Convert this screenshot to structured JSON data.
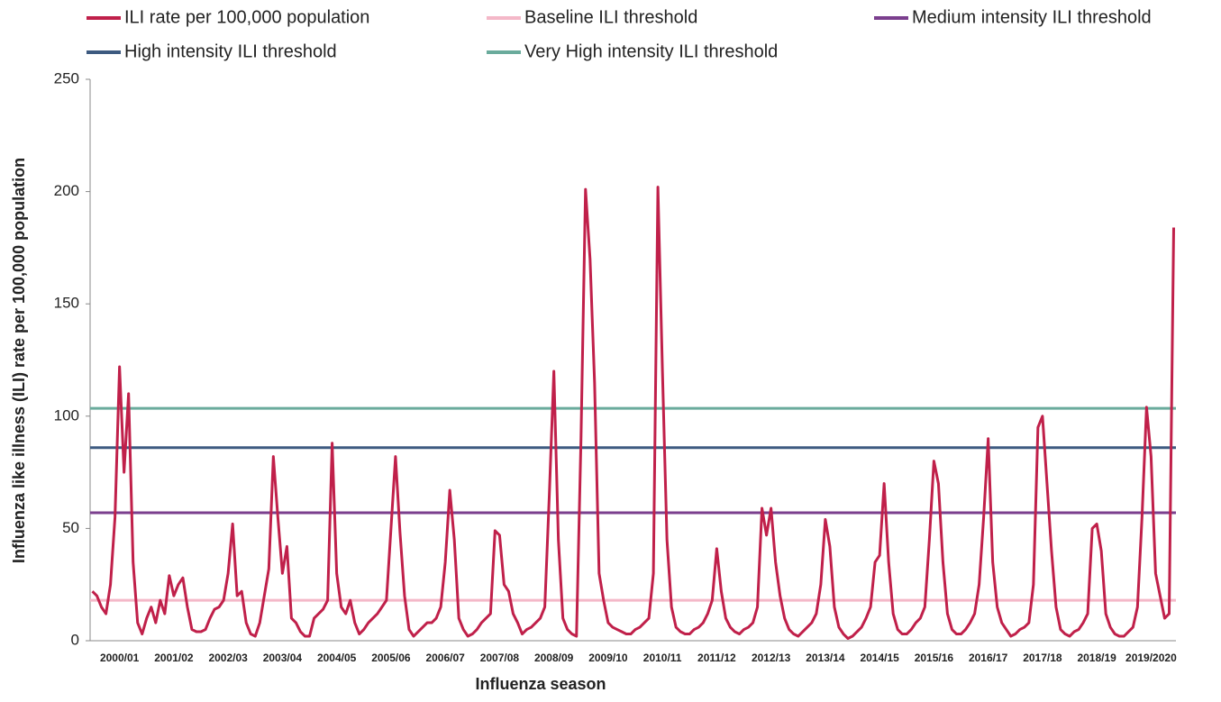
{
  "chart_data": {
    "type": "line",
    "y_label": "Influenza like illness (ILI) rate per 100,000 population",
    "x_label": "Influenza season",
    "categories": [
      null,
      null,
      null,
      null,
      null,
      null,
      "2000/01",
      null,
      null,
      null,
      null,
      null,
      null,
      null,
      null,
      null,
      null,
      null,
      "2001/02",
      null,
      null,
      null,
      null,
      null,
      null,
      null,
      null,
      null,
      null,
      null,
      "2002/03",
      null,
      null,
      null,
      null,
      null,
      null,
      null,
      null,
      null,
      null,
      null,
      "2003/04",
      null,
      null,
      null,
      null,
      null,
      null,
      null,
      null,
      null,
      null,
      null,
      "2004/05",
      null,
      null,
      null,
      null,
      null,
      null,
      null,
      null,
      null,
      null,
      null,
      "2005/06",
      null,
      null,
      null,
      null,
      null,
      null,
      null,
      null,
      null,
      null,
      null,
      "2006/07",
      null,
      null,
      null,
      null,
      null,
      null,
      null,
      null,
      null,
      null,
      null,
      "2007/08",
      null,
      null,
      null,
      null,
      null,
      null,
      null,
      null,
      null,
      null,
      null,
      "2008/09",
      null,
      null,
      null,
      null,
      null,
      null,
      null,
      null,
      null,
      null,
      null,
      "2009/10",
      null,
      null,
      null,
      null,
      null,
      null,
      null,
      null,
      null,
      null,
      null,
      "2010/11",
      null,
      null,
      null,
      null,
      null,
      null,
      null,
      null,
      null,
      null,
      null,
      "2011/12",
      null,
      null,
      null,
      null,
      null,
      null,
      null,
      null,
      null,
      null,
      null,
      "2012/13",
      null,
      null,
      null,
      null,
      null,
      null,
      null,
      null,
      null,
      null,
      null,
      "2013/14",
      null,
      null,
      null,
      null,
      null,
      null,
      null,
      null,
      null,
      null,
      null,
      "2014/15",
      null,
      null,
      null,
      null,
      null,
      null,
      null,
      null,
      null,
      null,
      null,
      "2015/16",
      null,
      null,
      null,
      null,
      null,
      null,
      null,
      null,
      null,
      null,
      null,
      "2016/17",
      null,
      null,
      null,
      null,
      null,
      null,
      null,
      null,
      null,
      null,
      null,
      "2017/18",
      null,
      null,
      null,
      null,
      null,
      null,
      null,
      null,
      null,
      null,
      null,
      "2018/19",
      null,
      null,
      null,
      null,
      null,
      null,
      null,
      null,
      null,
      null,
      null,
      "2019/2020",
      null,
      null,
      null,
      null,
      null
    ],
    "series": [
      {
        "name": "ILI rate per 100,000 population",
        "color": "#c0204a",
        "values": [
          22,
          20,
          15,
          12,
          25,
          55,
          122,
          75,
          110,
          35,
          8,
          3,
          10,
          15,
          8,
          18,
          12,
          29,
          20,
          25,
          28,
          15,
          5,
          4,
          4,
          5,
          10,
          14,
          15,
          18,
          30,
          52,
          20,
          22,
          8,
          3,
          2,
          8,
          20,
          32,
          82,
          55,
          30,
          42,
          10,
          8,
          4,
          2,
          2,
          10,
          12,
          14,
          18,
          88,
          30,
          15,
          12,
          18,
          8,
          3,
          5,
          8,
          10,
          12,
          15,
          18,
          50,
          82,
          48,
          20,
          5,
          2,
          4,
          6,
          8,
          8,
          10,
          15,
          35,
          67,
          45,
          10,
          5,
          2,
          3,
          5,
          8,
          10,
          12,
          49,
          47,
          25,
          22,
          12,
          8,
          3,
          5,
          6,
          8,
          10,
          15,
          65,
          120,
          45,
          10,
          5,
          3,
          2,
          90,
          201,
          170,
          115,
          30,
          18,
          8,
          6,
          5,
          4,
          3,
          3,
          5,
          6,
          8,
          10,
          30,
          202,
          120,
          45,
          15,
          6,
          4,
          3,
          3,
          5,
          6,
          8,
          12,
          18,
          41,
          22,
          10,
          6,
          4,
          3,
          5,
          6,
          8,
          15,
          59,
          47,
          59,
          35,
          20,
          10,
          5,
          3,
          2,
          4,
          6,
          8,
          12,
          25,
          54,
          42,
          15,
          6,
          3,
          1,
          2,
          4,
          6,
          10,
          15,
          35,
          38,
          70,
          35,
          12,
          5,
          3,
          3,
          5,
          8,
          10,
          15,
          45,
          80,
          70,
          35,
          12,
          5,
          3,
          3,
          5,
          8,
          12,
          25,
          55,
          90,
          35,
          15,
          8,
          5,
          2,
          3,
          5,
          6,
          8,
          25,
          95,
          100,
          70,
          40,
          15,
          5,
          3,
          2,
          4,
          5,
          8,
          12,
          50,
          52,
          40,
          12,
          6,
          3,
          2,
          2,
          4,
          6,
          15,
          55,
          104,
          82,
          30,
          20,
          10,
          12,
          184
        ]
      }
    ],
    "thresholds": [
      {
        "name": "Baseline ILI threshold",
        "color": "#f4b8c8",
        "value": 18
      },
      {
        "name": "Medium intensity ILI threshold",
        "color": "#7b3f8e",
        "value": 57
      },
      {
        "name": "High intensity ILI threshold",
        "color": "#3d5a80",
        "value": 86
      },
      {
        "name": "Very High intensity ILI threshold",
        "color": "#6aab9c",
        "value": 103.5
      }
    ],
    "ylim": [
      0,
      250
    ],
    "yticks": [
      0,
      50,
      100,
      150,
      200,
      250
    ],
    "grid": false
  }
}
